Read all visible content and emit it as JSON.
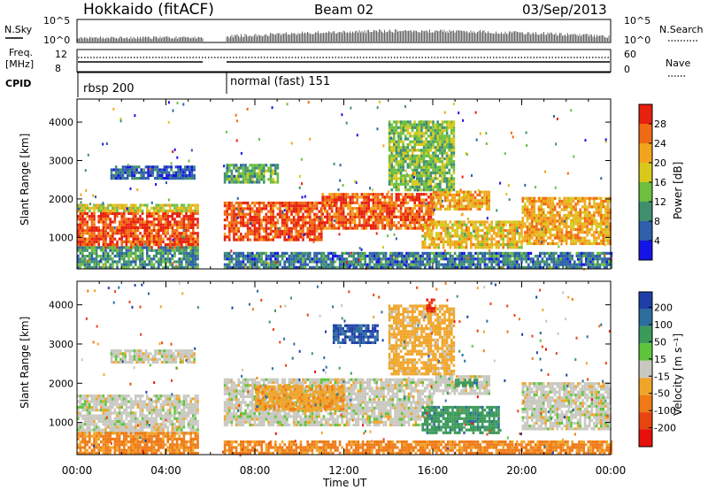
{
  "header": {
    "station": "Hokkaido (fitACF)",
    "beam": "Beam 02",
    "date": "03/Sep/2013"
  },
  "aux_panels": {
    "nsky": {
      "label": "N.Sky",
      "tick_top": "10^5",
      "tick_bottom": "10^0",
      "right_tick_top": "10^5",
      "right_tick_bottom": "10^0",
      "right_label": "N.Search"
    },
    "freq": {
      "label_line1": "Freq.",
      "label_line2": "[MHz]",
      "tick_top": "12",
      "tick_bottom": "8",
      "right_tick_top": "60",
      "right_tick_bottom": "0",
      "right_label": "Nave"
    },
    "cpid": {
      "label": "CPID",
      "segments": [
        "rbsp 200",
        "normal (fast) 151"
      ]
    }
  },
  "time_axis": {
    "label": "Time UT",
    "ticks": [
      "00:00",
      "04:00",
      "08:00",
      "12:00",
      "16:00",
      "20:00",
      "00:00"
    ]
  },
  "chart_data": [
    {
      "type": "heatmap",
      "panel": "power",
      "ylabel": "Slant Range [km]",
      "x_range_hours": [
        0,
        24
      ],
      "ylim_km": [
        180,
        4600
      ],
      "yticks": [
        1000,
        2000,
        3000,
        4000
      ],
      "data_gap_hours": [
        5.45,
        6.5
      ],
      "colorbar": {
        "label": "Power [dB]",
        "ticks": [
          4,
          8,
          12,
          16,
          20,
          24,
          28
        ],
        "colors": [
          "#1414e6",
          "#2e5faa",
          "#3f8f6e",
          "#6cbf3f",
          "#d8c81c",
          "#f2a41c",
          "#ef6a12",
          "#e8200e"
        ]
      },
      "regions": [
        {
          "t": [
            0,
            5.4
          ],
          "r": [
            700,
            1650
          ],
          "value": 28
        },
        {
          "t": [
            0,
            5.4
          ],
          "r": [
            1650,
            1850
          ],
          "value": 18
        },
        {
          "t": [
            0,
            5.4
          ],
          "r": [
            180,
            700
          ],
          "value": 10
        },
        {
          "t": [
            1.5,
            5.3
          ],
          "r": [
            2500,
            2800
          ],
          "value": 6
        },
        {
          "t": [
            6.6,
            11.0
          ],
          "r": [
            900,
            1900
          ],
          "value": 28
        },
        {
          "t": [
            11.0,
            16.0
          ],
          "r": [
            1200,
            2100
          ],
          "value": 27
        },
        {
          "t": [
            16.0,
            18.5
          ],
          "r": [
            1700,
            2200
          ],
          "value": 22
        },
        {
          "t": [
            14.0,
            17.0
          ],
          "r": [
            2200,
            4000
          ],
          "value": 14
        },
        {
          "t": [
            15.5,
            20.0
          ],
          "r": [
            700,
            1400
          ],
          "value": 20
        },
        {
          "t": [
            20.0,
            24.0
          ],
          "r": [
            800,
            2000
          ],
          "value": 22
        },
        {
          "t": [
            6.6,
            9.0
          ],
          "r": [
            2400,
            2900
          ],
          "value": 12
        },
        {
          "t": [
            6.6,
            24.0
          ],
          "r": [
            180,
            600
          ],
          "value": 8
        }
      ]
    },
    {
      "type": "heatmap",
      "panel": "velocity",
      "ylabel": "Slant Range [km]",
      "x_range_hours": [
        0,
        24
      ],
      "ylim_km": [
        180,
        4600
      ],
      "yticks": [
        1000,
        2000,
        3000,
        4000
      ],
      "data_gap_hours": [
        5.45,
        6.5
      ],
      "colorbar": {
        "label": "Velocity [m s⁻¹]",
        "ticks": [
          200,
          100,
          50,
          15,
          -15,
          -50,
          -100,
          -200
        ],
        "colors": [
          "#1e3fa8",
          "#2d6e9e",
          "#3b9a5a",
          "#5ec43b",
          "#c8c8c0",
          "#f0a52a",
          "#ef7a16",
          "#e84410",
          "#e8100c"
        ]
      },
      "regions": [
        {
          "t": [
            0,
            5.4
          ],
          "r": [
            700,
            1700
          ],
          "value": 0
        },
        {
          "t": [
            0,
            5.4
          ],
          "r": [
            180,
            700
          ],
          "value": -60
        },
        {
          "t": [
            1.5,
            5.3
          ],
          "r": [
            2500,
            2800
          ],
          "value": 0
        },
        {
          "t": [
            6.6,
            16.0
          ],
          "r": [
            900,
            2100
          ],
          "value": 0
        },
        {
          "t": [
            8.0,
            12.0
          ],
          "r": [
            1300,
            1900
          ],
          "value": -40
        },
        {
          "t": [
            15.5,
            19.0
          ],
          "r": [
            700,
            1400
          ],
          "value": 60
        },
        {
          "t": [
            16.0,
            18.5
          ],
          "r": [
            1700,
            2200
          ],
          "value": 0
        },
        {
          "t": [
            17.0,
            18.0
          ],
          "r": [
            1900,
            2100
          ],
          "value": 60
        },
        {
          "t": [
            20.0,
            24.0
          ],
          "r": [
            800,
            2000
          ],
          "value": 0
        },
        {
          "t": [
            14.0,
            17.0
          ],
          "r": [
            2200,
            4000
          ],
          "value": -30
        },
        {
          "t": [
            15.7,
            16.1
          ],
          "r": [
            3800,
            4100
          ],
          "value": -200
        },
        {
          "t": [
            11.5,
            13.5
          ],
          "r": [
            3000,
            3500
          ],
          "value": 150
        },
        {
          "t": [
            6.6,
            24.0
          ],
          "r": [
            180,
            500
          ],
          "value": -60
        }
      ]
    }
  ]
}
